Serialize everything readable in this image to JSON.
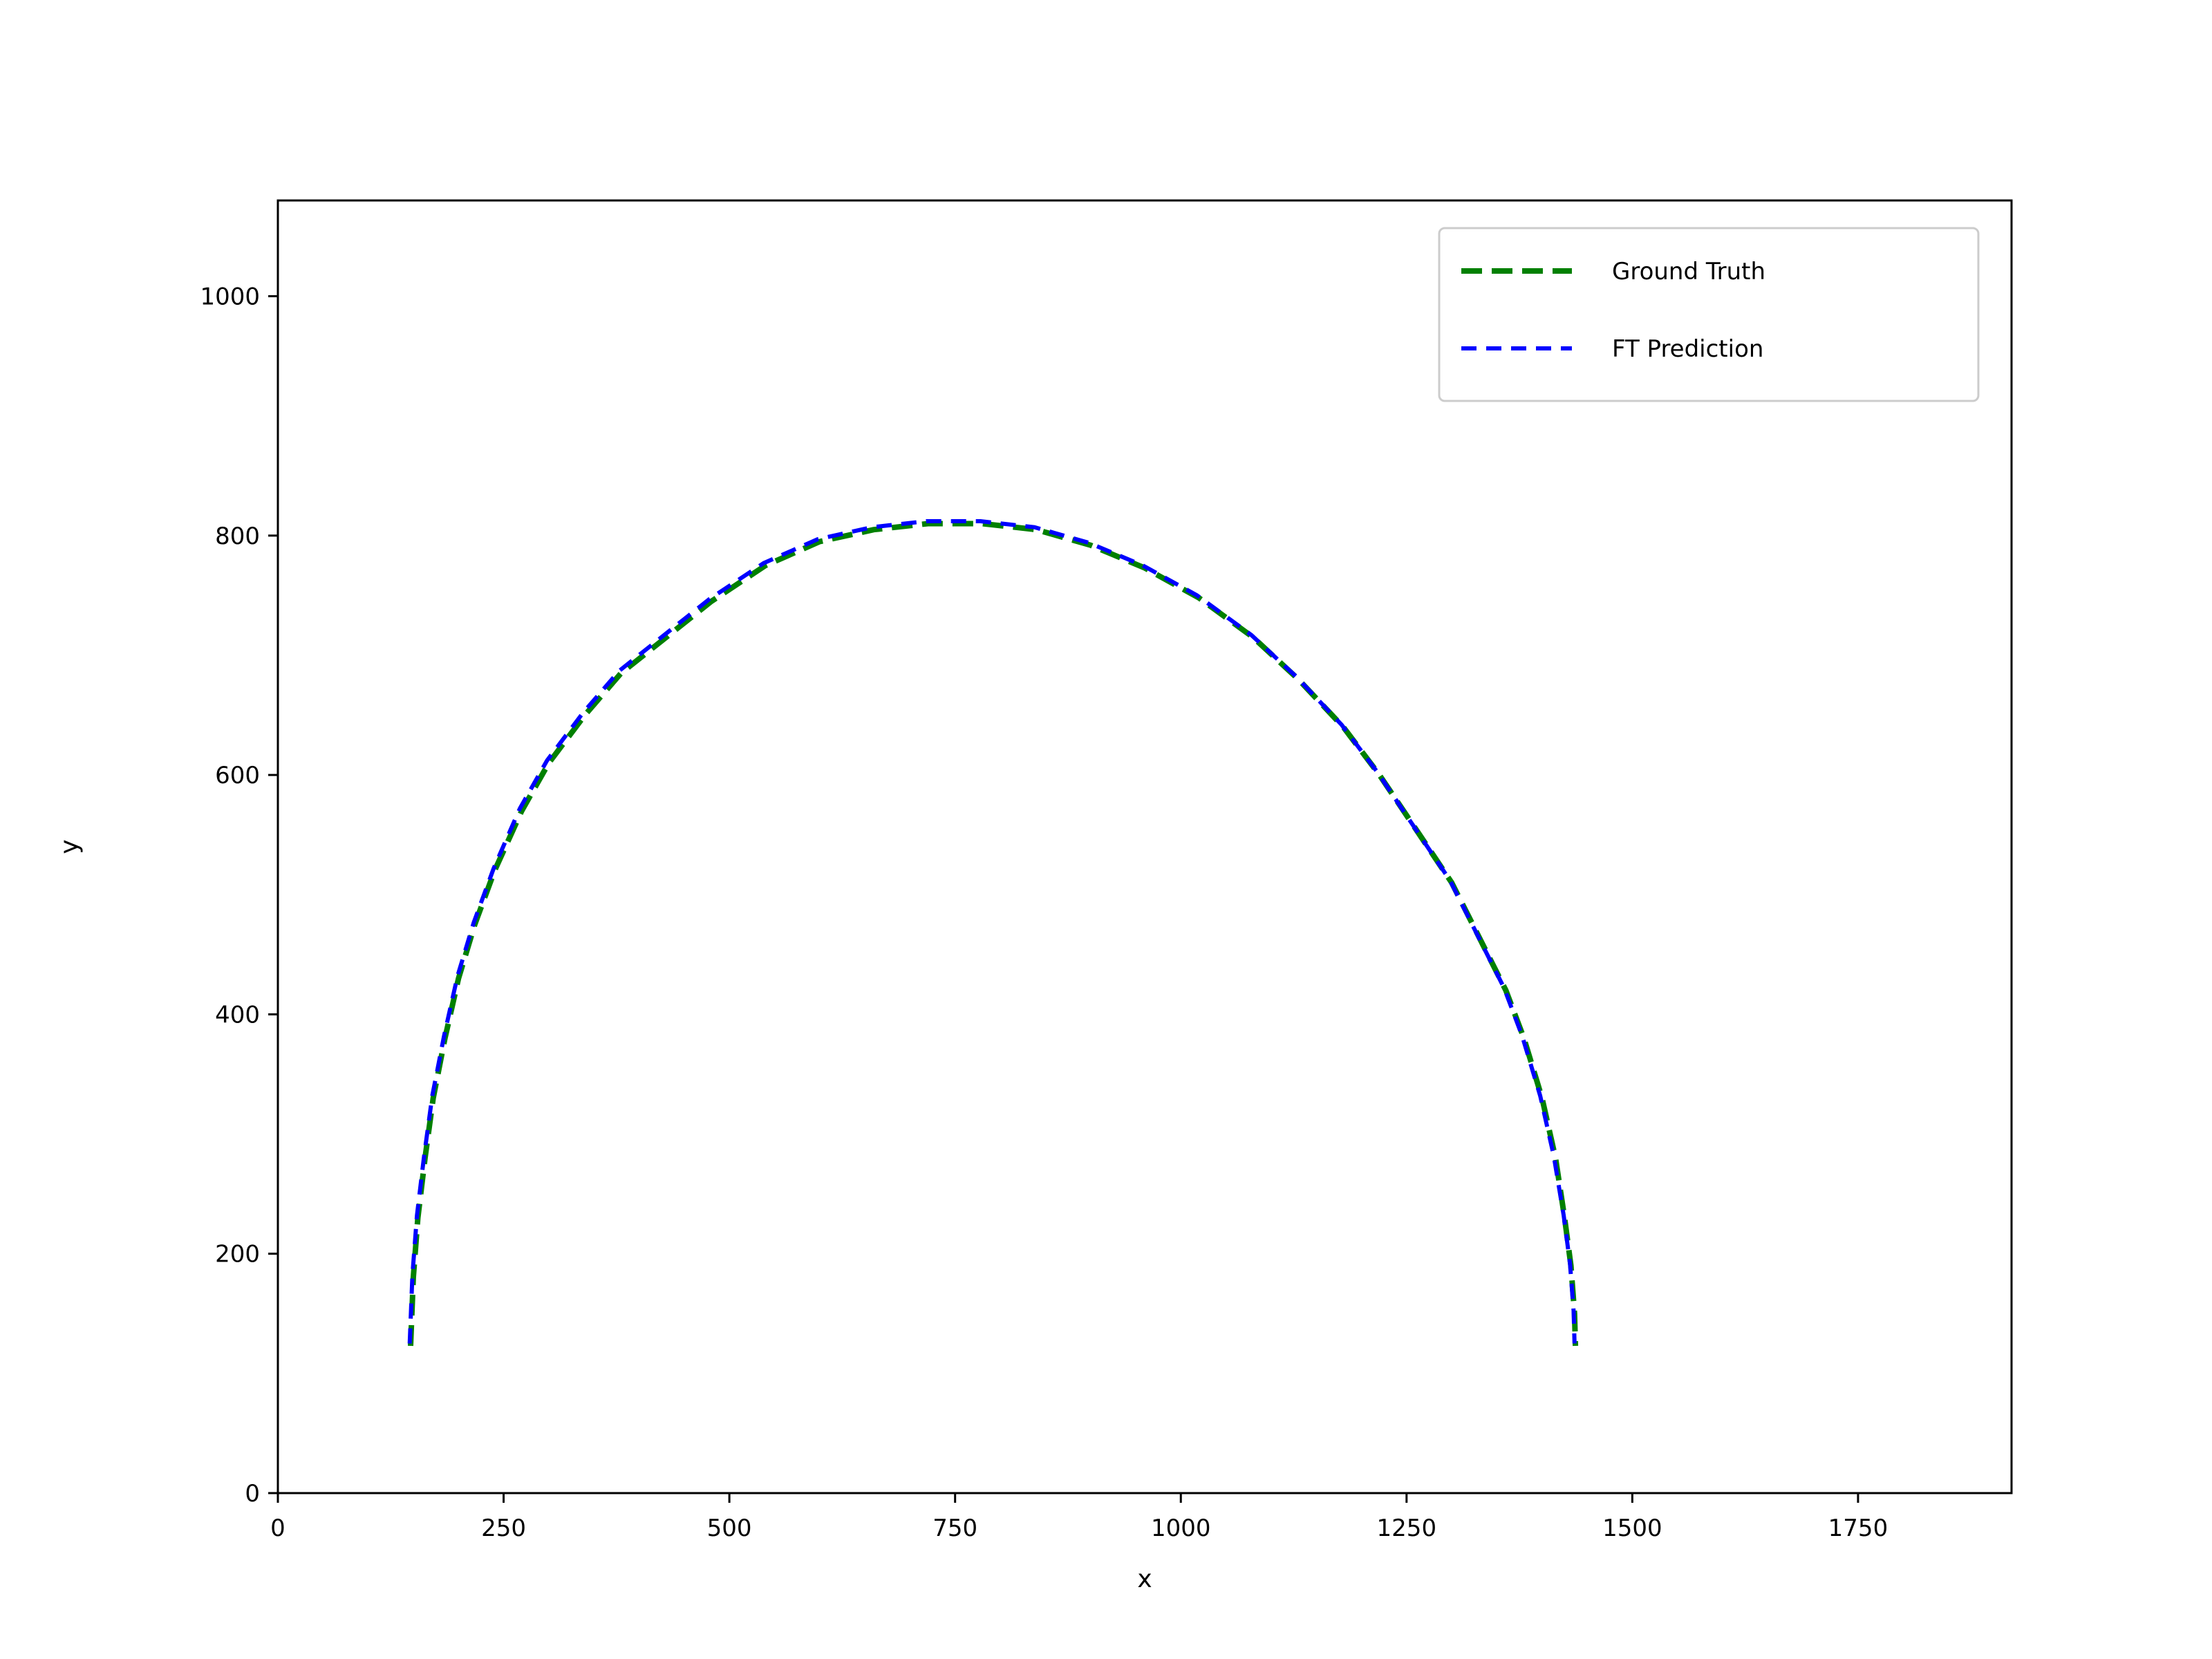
{
  "chart_data": {
    "type": "line",
    "title": "",
    "xlabel": "x",
    "ylabel": "y",
    "xlim": [
      0,
      1920
    ],
    "ylim": [
      0,
      1080
    ],
    "xticks": [
      0,
      250,
      500,
      750,
      1000,
      1250,
      1500,
      1750
    ],
    "yticks": [
      0,
      200,
      400,
      600,
      800,
      1000
    ],
    "grid": false,
    "legend_position": "top-right",
    "series": [
      {
        "name": "Ground Truth",
        "color": "#008000",
        "style": "dashed",
        "x": [
          147,
          150,
          155,
          163,
          172,
          185,
          200,
          218,
          240,
          270,
          300,
          340,
          380,
          430,
          480,
          540,
          600,
          660,
          720,
          780,
          840,
          900,
          960,
          1020,
          1080,
          1130,
          1180,
          1220,
          1260,
          1300,
          1330,
          1360,
          1380,
          1400,
          1415,
          1425,
          1432,
          1436,
          1437
        ],
        "y": [
          123,
          180,
          230,
          280,
          330,
          380,
          430,
          475,
          520,
          570,
          610,
          650,
          685,
          715,
          745,
          775,
          795,
          805,
          810,
          810,
          805,
          792,
          773,
          748,
          715,
          680,
          640,
          600,
          555,
          510,
          465,
          420,
          380,
          330,
          280,
          230,
          190,
          150,
          123
        ]
      },
      {
        "name": "FT Prediction",
        "color": "#0000ff",
        "style": "dashed",
        "x": [
          146,
          149,
          154,
          162,
          171,
          184,
          199,
          217,
          239,
          268,
          298,
          338,
          378,
          428,
          478,
          538,
          598,
          658,
          718,
          778,
          838,
          898,
          958,
          1018,
          1078,
          1128,
          1178,
          1218,
          1258,
          1298,
          1328,
          1358,
          1378,
          1398,
          1413,
          1424,
          1431,
          1435,
          1436
        ],
        "y": [
          125,
          182,
          232,
          282,
          332,
          382,
          432,
          477,
          522,
          572,
          612,
          652,
          687,
          717,
          747,
          777,
          797,
          807,
          812,
          812,
          807,
          794,
          775,
          750,
          717,
          682,
          642,
          602,
          557,
          512,
          467,
          422,
          382,
          332,
          282,
          232,
          192,
          152,
          125
        ]
      }
    ]
  }
}
